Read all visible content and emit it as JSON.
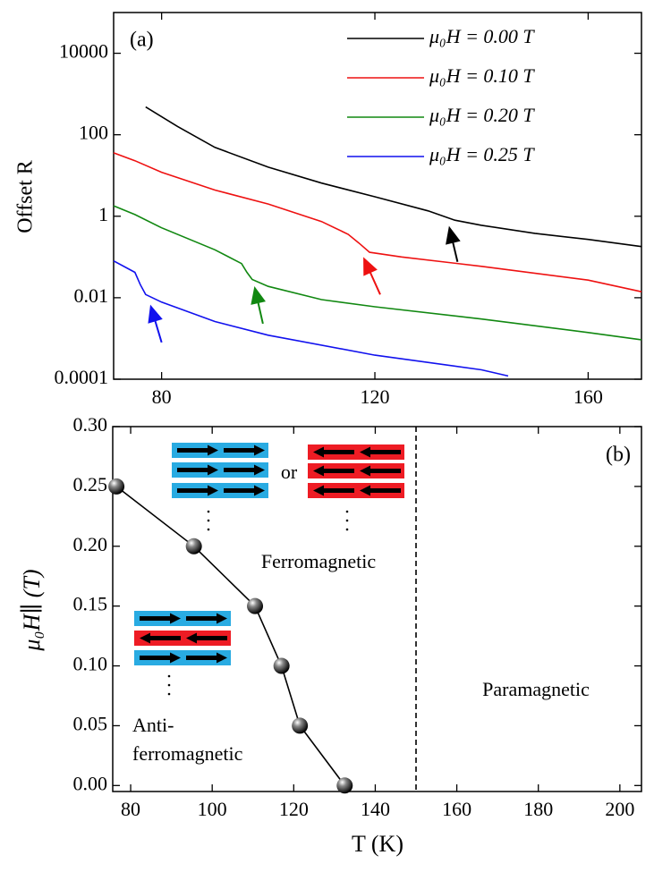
{
  "chart_data": [
    {
      "type": "line",
      "panel_label": "(a)",
      "ylabel": "Offset R",
      "ylog": true,
      "xlim": [
        71,
        170
      ],
      "xticks": [
        80,
        120,
        160
      ],
      "ylim": [
        0.0001,
        100000
      ],
      "yticks": [
        0.0001,
        0.01,
        1,
        100,
        10000
      ],
      "legend": "upper right",
      "series": [
        {
          "name": "μ₀H = 0.00 T",
          "color": "#000000",
          "x": [
            77,
            83,
            90,
            100,
            110,
            120,
            130,
            135,
            140,
            150,
            160,
            170
          ],
          "values": [
            480,
            160,
            49,
            16,
            6.5,
            3,
            1.35,
            0.8,
            0.6,
            0.38,
            0.27,
            0.18
          ]
        },
        {
          "name": "μ₀H = 0.10 T",
          "color": "#ee1111",
          "x": [
            71,
            75,
            80,
            90,
            100,
            110,
            115,
            117,
            119,
            125,
            140,
            160,
            170
          ],
          "values": [
            36,
            23,
            12,
            4.4,
            2,
            0.74,
            0.36,
            0.22,
            0.13,
            0.1,
            0.059,
            0.027,
            0.014
          ]
        },
        {
          "name": "μ₀H = 0.20 T",
          "color": "#118811",
          "x": [
            71,
            75,
            80,
            90,
            95,
            96,
            97,
            100,
            110,
            120,
            140,
            160,
            170
          ],
          "values": [
            1.8,
            1.1,
            0.52,
            0.15,
            0.069,
            0.042,
            0.028,
            0.019,
            0.009,
            0.006,
            0.003,
            0.0014,
            0.00093
          ]
        },
        {
          "name": "μ₀H = 0.25 T",
          "color": "#1111ee",
          "x": [
            71,
            75,
            76,
            77,
            80,
            90,
            100,
            120,
            140,
            145
          ],
          "values": [
            0.08,
            0.042,
            0.021,
            0.012,
            0.0078,
            0.0026,
            0.0012,
            0.00039,
            0.00017,
            0.00012
          ]
        }
      ],
      "arrows": [
        {
          "color": "#000000",
          "x": [
            135.5,
            134
          ],
          "y": [
            0.076,
            0.51
          ]
        },
        {
          "color": "#ee1111",
          "x": [
            121,
            118
          ],
          "y": [
            0.012,
            0.089
          ]
        },
        {
          "color": "#118811",
          "x": [
            99,
            97.5
          ],
          "y": [
            0.0023,
            0.017
          ]
        },
        {
          "color": "#1111ee",
          "x": [
            80,
            78
          ],
          "y": [
            0.0008,
            0.006
          ]
        }
      ]
    },
    {
      "type": "line",
      "panel_label": "(b)",
      "xlabel": "T (K)",
      "ylabel": "μ₀H∥ (T)",
      "xlim": [
        75.6,
        205.3
      ],
      "xticks": [
        80,
        100,
        120,
        140,
        160,
        180,
        200
      ],
      "ylim": [
        -0.005,
        0.3
      ],
      "yticks": [
        {
          "value": 0,
          "label": "0.00"
        },
        0.05,
        {
          "value": 0.1,
          "label": "0.10"
        },
        0.15,
        {
          "value": 0.2,
          "label": "0.20"
        },
        0.25,
        {
          "value": 0.3,
          "label": "0.30"
        }
      ],
      "markers": true,
      "vline": 150,
      "series": [
        {
          "color": "#000000",
          "x": [
            76.5,
            95.5,
            110.5,
            117,
            121.5,
            132.5
          ],
          "values": [
            0.25,
            0.2,
            0.15,
            0.1,
            0.05,
            0
          ]
        }
      ],
      "region_labels": [
        "Ferromagnetic",
        "or",
        "Paramagnetic",
        "Anti-",
        "ferromagnetic"
      ]
    }
  ]
}
